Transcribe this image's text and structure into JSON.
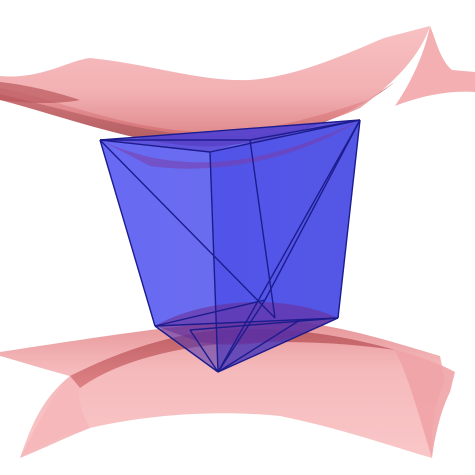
{
  "scene": {
    "surface_color": "#f4a9ab",
    "surface_shadow_color": "#c0585c",
    "polytope_fill_color": "#3b3fe4",
    "polytope_edge_color": "#1c1c8e"
  }
}
